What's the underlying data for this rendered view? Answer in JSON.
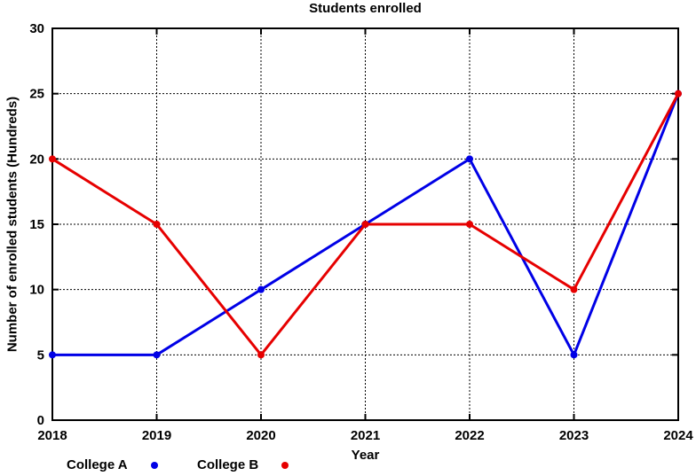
{
  "chart_data": {
    "type": "line",
    "title": "Students enrolled",
    "xlabel": "Year",
    "ylabel": "Number of enrolled students (Hundreds)",
    "categories": [
      "2018",
      "2019",
      "2020",
      "2021",
      "2022",
      "2023",
      "2024"
    ],
    "y_ticks": [
      0,
      5,
      10,
      15,
      20,
      25,
      30
    ],
    "ylim": [
      0,
      30
    ],
    "grid": true,
    "legend_position": "bottom-left",
    "series": [
      {
        "name": "College A",
        "color": "#0000e6",
        "marker": "circle",
        "values": [
          5,
          5,
          10,
          15,
          20,
          5,
          25
        ]
      },
      {
        "name": "College B",
        "color": "#e60000",
        "marker": "circle",
        "values": [
          20,
          15,
          5,
          15,
          15,
          10,
          25
        ]
      }
    ]
  },
  "colors": {
    "background": "#ffffff",
    "axis": "#000000",
    "grid": "#000000",
    "text": "#000000"
  }
}
